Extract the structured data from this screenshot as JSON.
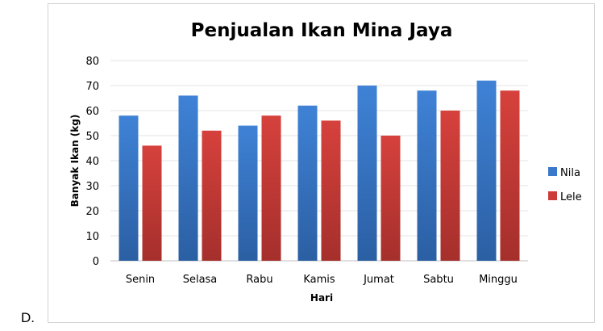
{
  "option_label": "D.",
  "chart_data": {
    "type": "bar",
    "title": "Penjualan Ikan Mina Jaya",
    "xlabel": "Hari",
    "ylabel": "Banyak Ikan (kg)",
    "categories": [
      "Senin",
      "Selasa",
      "Rabu",
      "Kamis",
      "Jumat",
      "Sabtu",
      "Minggu"
    ],
    "ylim": [
      0,
      80
    ],
    "yticks": [
      0,
      10,
      20,
      30,
      40,
      50,
      60,
      70,
      80
    ],
    "grid": true,
    "legend_position": "right",
    "series": [
      {
        "name": "Nila",
        "values": [
          58,
          66,
          54,
          62,
          70,
          68,
          72
        ],
        "color": "#3a78c9"
      },
      {
        "name": "Lele",
        "values": [
          46,
          52,
          58,
          56,
          50,
          60,
          68
        ],
        "color": "#cc3b38"
      }
    ]
  }
}
